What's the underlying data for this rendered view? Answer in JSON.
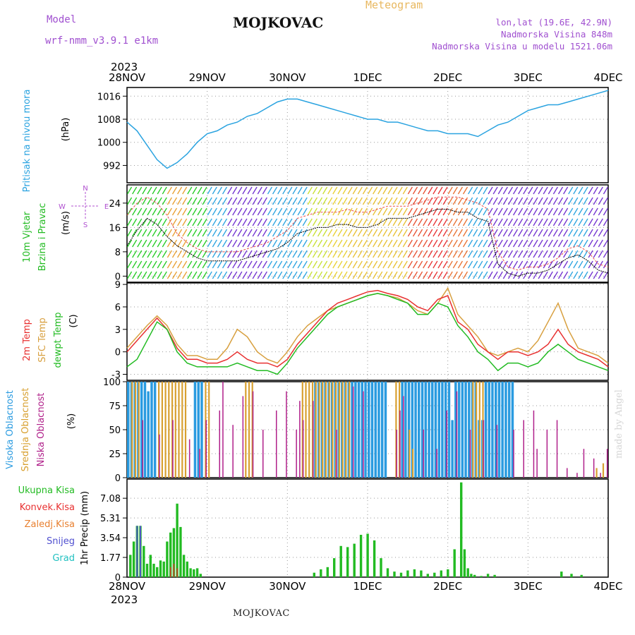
{
  "header": {
    "title": "MOJKOVAC",
    "subtitle": "Meteogram",
    "model_label": "Model",
    "model_name": "wrf-nmm_v3.9.1 e1km",
    "location": "lon,lat (19.6E, 42.9N)",
    "elevation": "Nadmorska Visina 848m",
    "model_elevation": "Nadmorska Visina u modelu 1521.06m",
    "bottom_name": "MOJKOVAC",
    "credit": "made by Angel"
  },
  "time_axis": {
    "year": "2023",
    "labels": [
      "28NOV",
      "29NOV",
      "30NOV",
      "1DEC",
      "2DEC",
      "3DEC",
      "4DEC"
    ]
  },
  "colors": {
    "pressure": "#2aa3e0",
    "temp2m": "#e83030",
    "sfc": "#d8a040",
    "dewpt": "#22bb22",
    "high_cloud": "#2a9be0",
    "mid_cloud": "#d8a030",
    "low_cloud": "#b0208a",
    "total_precip": "#22bb22",
    "conv_precip": "#e83030",
    "freez_precip": "#e88030",
    "snow": "#5050d0",
    "grad": "#20c0c0",
    "wind_label": "#22bb22",
    "wind_dir": "#b050d0"
  },
  "chart_data": [
    {
      "id": "pressure",
      "type": "line",
      "ylabel": [
        "Pritisak na nivou mora",
        "(hPa)"
      ],
      "yticks": [
        992,
        1000,
        1008,
        1016
      ],
      "ylim": [
        986,
        1019
      ],
      "x_hours": [
        0,
        3,
        6,
        9,
        12,
        15,
        18,
        21,
        24,
        27,
        30,
        33,
        36,
        39,
        42,
        45,
        48,
        51,
        54,
        57,
        60,
        63,
        66,
        69,
        72,
        75,
        78,
        81,
        84,
        87,
        90,
        93,
        96,
        99,
        102,
        105,
        108,
        111,
        114,
        117,
        120,
        123,
        126,
        129,
        132,
        135,
        138,
        141,
        144
      ],
      "values": [
        1007,
        1004,
        999,
        994,
        991,
        993,
        996,
        1000,
        1003,
        1004,
        1006,
        1007,
        1009,
        1010,
        1012,
        1014,
        1015,
        1015,
        1014,
        1013,
        1012,
        1011,
        1010,
        1009,
        1008,
        1008,
        1007,
        1007,
        1006,
        1005,
        1004,
        1004,
        1003,
        1003,
        1003,
        1002,
        1004,
        1006,
        1007,
        1009,
        1011,
        1012,
        1013,
        1013,
        1014,
        1015,
        1016,
        1017,
        1018
      ]
    },
    {
      "id": "wind",
      "type": "line",
      "ylabel": [
        "10m Vjetar",
        "Brzina i Pravac",
        "(m/s)"
      ],
      "direction_labels": {
        "n": "N",
        "s": "S",
        "e": "E",
        "w": "W"
      },
      "yticks": [
        0,
        8,
        16,
        24
      ],
      "ylim": [
        -2,
        30
      ],
      "x_hours": [
        0,
        3,
        6,
        9,
        12,
        15,
        18,
        21,
        24,
        27,
        30,
        33,
        36,
        39,
        42,
        45,
        48,
        51,
        54,
        57,
        60,
        63,
        66,
        69,
        72,
        75,
        78,
        81,
        84,
        87,
        90,
        93,
        96,
        99,
        102,
        105,
        108,
        111,
        114,
        117,
        120,
        123,
        126,
        129,
        132,
        135,
        138,
        141,
        144
      ],
      "speed": [
        10,
        15,
        19,
        17,
        13,
        10,
        8,
        6,
        5,
        5,
        5,
        5,
        6,
        7,
        8,
        9,
        11,
        14,
        15,
        16,
        16,
        17,
        17,
        16,
        16,
        17,
        19,
        19,
        19,
        20,
        21,
        22,
        22,
        21,
        21,
        19,
        18,
        4,
        1,
        0,
        1,
        1,
        2,
        4,
        6,
        7,
        5,
        2,
        1
      ],
      "gust": [
        20,
        24,
        26,
        24,
        20,
        14,
        11,
        9,
        8,
        8,
        8,
        8,
        9,
        10,
        11,
        13,
        15,
        19,
        20,
        21,
        21,
        21,
        22,
        21,
        21,
        22,
        23,
        23,
        23,
        24,
        25,
        26,
        26,
        26,
        25,
        24,
        22,
        8,
        3,
        2,
        3,
        3,
        4,
        6,
        9,
        10,
        8,
        4,
        3
      ]
    },
    {
      "id": "temperature",
      "type": "line",
      "ylabel": [
        "2m Temp",
        "SFC Temp",
        "dewpt Temp",
        "(C)"
      ],
      "yticks": [
        -3,
        0,
        3,
        6,
        9
      ],
      "ylim": [
        -3.8,
        9.2
      ],
      "x_hours": [
        0,
        3,
        6,
        9,
        12,
        15,
        18,
        21,
        24,
        27,
        30,
        33,
        36,
        39,
        42,
        45,
        48,
        51,
        54,
        57,
        60,
        63,
        66,
        69,
        72,
        75,
        78,
        81,
        84,
        87,
        90,
        93,
        96,
        99,
        102,
        105,
        108,
        111,
        114,
        117,
        120,
        123,
        126,
        129,
        132,
        135,
        138,
        141,
        144
      ],
      "temp2m": [
        0,
        1.5,
        3,
        4.5,
        3,
        0.5,
        -1,
        -1,
        -1.5,
        -1.5,
        -1,
        0,
        -1,
        -1.5,
        -1.5,
        -2,
        -1,
        1,
        2.5,
        4,
        5.5,
        6.5,
        7,
        7.5,
        8,
        8.2,
        7.8,
        7.5,
        7,
        6,
        5.5,
        7,
        7.5,
        4,
        3,
        1,
        0,
        -1,
        0,
        0,
        -0.5,
        0,
        1,
        3,
        1,
        0,
        -0.5,
        -1,
        -2
      ],
      "sfc": [
        0.5,
        2,
        3.5,
        4.8,
        3.5,
        1,
        -0.5,
        -0.5,
        -1,
        -1,
        0.5,
        3,
        2,
        0,
        -1,
        -1.5,
        0,
        2,
        3.5,
        4.5,
        5.5,
        6,
        6.5,
        7,
        7.5,
        7.8,
        7.5,
        7.2,
        6.5,
        5.5,
        5,
        6.5,
        8.5,
        5,
        3.5,
        2,
        0,
        -0.5,
        0,
        0.5,
        0,
        1.5,
        4,
        6.5,
        3,
        0.5,
        0,
        -0.5,
        -1.5
      ],
      "dewpt": [
        -2,
        -1,
        1.5,
        4,
        3,
        0,
        -1.5,
        -2,
        -2,
        -2,
        -2,
        -1.5,
        -2,
        -2.5,
        -2.5,
        -3,
        -1.5,
        0.5,
        2,
        3.5,
        5,
        6,
        6.5,
        7,
        7.5,
        7.8,
        7.5,
        7,
        6.5,
        5,
        5,
        6.5,
        6,
        3.5,
        2,
        0,
        -1,
        -2.5,
        -1.5,
        -1.5,
        -2,
        -1.5,
        0,
        1,
        0,
        -1,
        -1.5,
        -2,
        -2.5
      ]
    },
    {
      "id": "clouds",
      "type": "bar",
      "ylabel": [
        "Visoka Oblacnost",
        "Srednja Oblacnost",
        "Niska Oblacnost",
        "(%)"
      ],
      "yticks": [
        0,
        25,
        50,
        75,
        100
      ],
      "ylim": [
        0,
        100
      ],
      "series": [
        {
          "name": "Visoka Oblacnost",
          "x_hours": [
            0,
            1,
            2,
            3,
            4,
            5,
            6,
            7,
            8,
            20,
            21,
            22,
            56,
            57,
            58,
            59,
            60,
            61,
            62,
            63,
            64,
            65,
            66,
            67,
            68,
            69,
            70,
            71,
            72,
            73,
            74,
            75,
            76,
            77,
            82,
            83,
            84,
            85,
            86,
            87,
            88,
            89,
            90,
            91,
            92,
            93,
            94,
            95,
            96,
            97,
            98,
            99,
            100,
            101,
            102,
            103,
            104,
            105,
            106,
            107,
            108,
            109,
            110,
            111,
            112,
            113,
            114,
            115
          ],
          "values": [
            100,
            100,
            100,
            100,
            100,
            100,
            90,
            100,
            100,
            100,
            100,
            100,
            100,
            100,
            100,
            100,
            100,
            100,
            100,
            100,
            100,
            100,
            100,
            100,
            100,
            100,
            100,
            100,
            100,
            100,
            100,
            100,
            100,
            100,
            100,
            100,
            100,
            100,
            100,
            100,
            100,
            100,
            100,
            100,
            100,
            100,
            100,
            100,
            100,
            60,
            100,
            100,
            100,
            100,
            100,
            100,
            100,
            60,
            60,
            100,
            100,
            100,
            100,
            100,
            100,
            100,
            100,
            100
          ]
        },
        {
          "name": "Srednja Oblacnost",
          "x_hours": [
            1,
            2,
            3,
            9,
            10,
            11,
            12,
            13,
            14,
            15,
            16,
            17,
            23,
            24,
            35,
            36,
            37,
            52,
            53,
            54,
            55,
            56,
            57,
            58,
            59,
            60,
            61,
            62,
            63,
            64,
            65,
            66,
            80,
            81,
            84,
            85,
            103,
            104,
            105,
            106,
            140,
            142
          ],
          "values": [
            100,
            100,
            100,
            100,
            100,
            100,
            100,
            100,
            100,
            100,
            100,
            100,
            100,
            100,
            100,
            100,
            100,
            100,
            100,
            100,
            100,
            100,
            100,
            100,
            100,
            100,
            100,
            100,
            100,
            100,
            100,
            100,
            100,
            100,
            50,
            30,
            100,
            100,
            100,
            100,
            10,
            15
          ]
        },
        {
          "name": "Niska Oblacnost",
          "x_hours": [
            4,
            9,
            13,
            18,
            21,
            23,
            27,
            28,
            31,
            34,
            37,
            40,
            44,
            47,
            50,
            51,
            52,
            55,
            62,
            67,
            70,
            80,
            81,
            82,
            88,
            92,
            95,
            98,
            102,
            106,
            110,
            115,
            118,
            121,
            122,
            125,
            128,
            131,
            134,
            136,
            139,
            141,
            143
          ],
          "values": [
            60,
            45,
            60,
            40,
            30,
            60,
            70,
            100,
            55,
            85,
            90,
            50,
            70,
            90,
            50,
            80,
            60,
            80,
            50,
            95,
            90,
            50,
            70,
            85,
            50,
            30,
            70,
            90,
            50,
            60,
            55,
            50,
            60,
            70,
            30,
            50,
            60,
            10,
            5,
            30,
            20,
            5,
            30
          ]
        }
      ]
    },
    {
      "id": "precip",
      "type": "bar",
      "ylabel": [
        "1hr Precip (mm)"
      ],
      "legend": [
        "Ukupna Kisa",
        "Konvek.Kisa",
        "Zaledj.Kisa",
        "Snijeg",
        "Grad"
      ],
      "yticks": [
        0,
        1.77,
        3.54,
        5.31,
        7.08
      ],
      "ylim": [
        0,
        8.8
      ],
      "x_hours": [
        1,
        2,
        3,
        4,
        5,
        6,
        7,
        8,
        9,
        10,
        11,
        12,
        13,
        14,
        15,
        16,
        17,
        18,
        19,
        20,
        21,
        22,
        56,
        58,
        60,
        62,
        64,
        66,
        68,
        70,
        72,
        74,
        76,
        78,
        80,
        82,
        84,
        86,
        88,
        90,
        92,
        94,
        96,
        98,
        100,
        101,
        102,
        103,
        104,
        106,
        108,
        110,
        130,
        133,
        136
      ],
      "values": [
        2.0,
        3.2,
        4.6,
        4.6,
        2.8,
        1.2,
        2.0,
        1.2,
        0.9,
        1.5,
        1.4,
        3.2,
        4.0,
        4.4,
        6.6,
        4.5,
        2.0,
        1.4,
        0.8,
        0.7,
        0.8,
        0.3,
        0.4,
        0.7,
        0.9,
        1.7,
        2.8,
        2.7,
        3.0,
        3.8,
        3.9,
        3.3,
        1.7,
        0.8,
        0.5,
        0.4,
        0.6,
        0.7,
        0.6,
        0.3,
        0.4,
        0.6,
        0.7,
        2.5,
        8.5,
        2.5,
        0.8,
        0.3,
        0.2,
        0.1,
        0.3,
        0.2,
        0.5,
        0.3,
        0.2
      ],
      "snow_x_hours": [
        3,
        4
      ],
      "snow_values": [
        4.6,
        4.6
      ],
      "conv_x_hours": [
        13,
        14,
        15
      ],
      "conv_values": [
        0.9,
        1.2,
        0.8
      ]
    }
  ]
}
